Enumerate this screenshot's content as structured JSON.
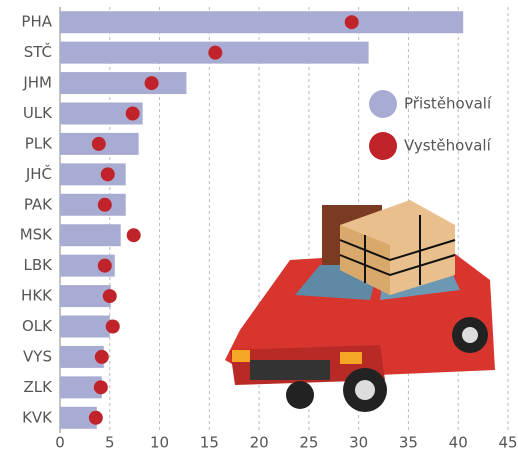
{
  "chart_data": {
    "type": "bar",
    "categories": [
      "PHA",
      "STČ",
      "JHM",
      "ULK",
      "PLK",
      "JHČ",
      "PAK",
      "MSK",
      "LBK",
      "HKK",
      "OLK",
      "VYS",
      "ZLK",
      "KVK"
    ],
    "series": [
      {
        "name": "Přistěhovalí",
        "color": "#a9acd2",
        "values": [
          40.5,
          31,
          12.7,
          8.3,
          7.9,
          6.6,
          6.6,
          6.1,
          5.5,
          5.1,
          5.0,
          4.4,
          4.2,
          3.7
        ]
      },
      {
        "name": "Vystěhovalí",
        "color": "#c1232b",
        "values": [
          29.3,
          15.6,
          9.2,
          7.3,
          3.9,
          4.8,
          4.5,
          7.4,
          4.5,
          5.0,
          5.3,
          4.2,
          4.1,
          3.6
        ]
      }
    ],
    "xlim": [
      0,
      45
    ],
    "xticks": [
      0,
      5,
      10,
      15,
      20,
      25,
      30,
      35,
      40,
      45
    ],
    "grid": true
  }
}
